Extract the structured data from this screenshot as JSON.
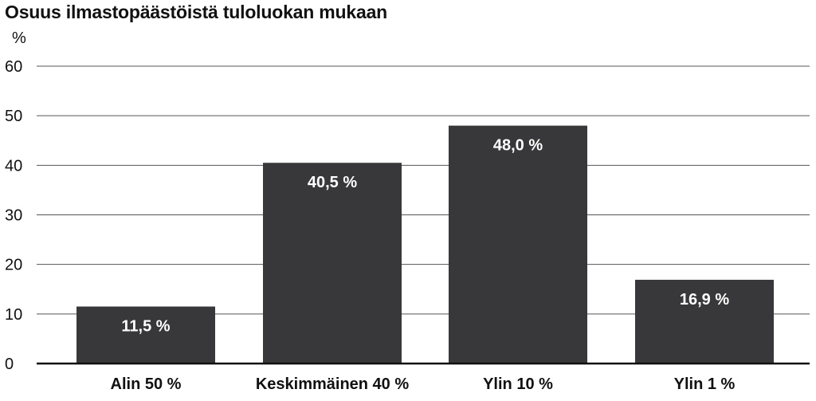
{
  "chart_data": {
    "type": "bar",
    "title": "Osuus ilmastopäästöistä tuloluokan mukaan",
    "ylabel": "%",
    "xlabel": "",
    "ylim": [
      0,
      60
    ],
    "yticks": [
      "0",
      "10",
      "20",
      "30",
      "40",
      "50",
      "60"
    ],
    "categories": [
      "Alin 50 %",
      "Keskimmäinen 40 %",
      "Ylin 10 %",
      "Ylin 1 %"
    ],
    "values": [
      11.5,
      40.5,
      48.0,
      16.9
    ],
    "data_labels": [
      "11,5 %",
      "40,5 %",
      "48,0 %",
      "16,9 %"
    ],
    "grid": true,
    "legend": "none",
    "colors": {
      "bar": "#38383a",
      "grid": "#555555",
      "axis": "#111111",
      "data_label": "#ffffff"
    }
  }
}
